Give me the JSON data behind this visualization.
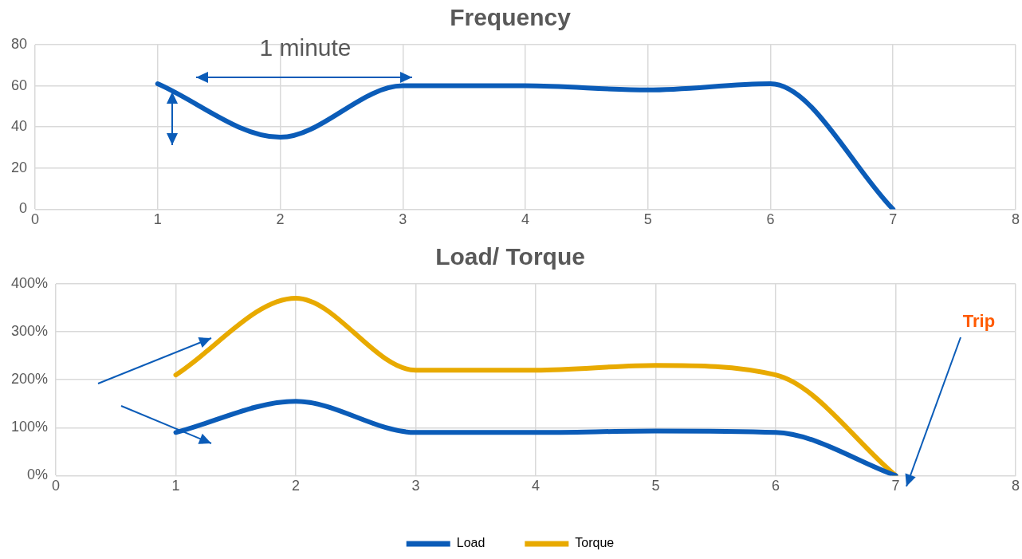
{
  "chart_data": [
    {
      "type": "line",
      "title": "Frequency",
      "annotations": [
        "1 minute"
      ],
      "x": [
        1,
        2,
        3,
        4,
        5,
        6,
        7
      ],
      "series": [
        {
          "color": "#0b5cb8",
          "values": [
            61,
            35,
            60,
            60,
            58,
            61,
            0
          ]
        }
      ],
      "xlim": [
        0,
        8
      ],
      "xticks": [
        0,
        1,
        2,
        3,
        4,
        5,
        6,
        7,
        8
      ],
      "ylim": [
        0,
        80
      ],
      "yticks": [
        0,
        20,
        40,
        60,
        80
      ],
      "grid": true,
      "legend": false,
      "marker": "none",
      "line_style": "solid"
    },
    {
      "type": "line",
      "title": "Load/ Torque",
      "annotations": [
        "Trip"
      ],
      "x": [
        1,
        2,
        3,
        4,
        5,
        6,
        7
      ],
      "series": [
        {
          "name": "Load",
          "color": "#0b5cb8",
          "values": [
            90,
            155,
            90,
            90,
            93,
            90,
            0
          ]
        },
        {
          "name": "Torque",
          "color": "#e8aa00",
          "values": [
            210,
            370,
            220,
            220,
            230,
            210,
            0
          ]
        }
      ],
      "xlim": [
        0,
        8
      ],
      "xticks": [
        0,
        1,
        2,
        3,
        4,
        5,
        6,
        7,
        8
      ],
      "ylim": [
        0,
        400
      ],
      "yticks": [
        {
          "value": 0,
          "label": "0%"
        },
        {
          "value": 100,
          "label": "100%"
        },
        {
          "value": 200,
          "label": "200%"
        },
        {
          "value": 300,
          "label": "300%"
        },
        {
          "value": 400,
          "label": "400%"
        }
      ],
      "grid": true,
      "legend": "bottom",
      "marker": "none",
      "line_style": "solid"
    }
  ]
}
